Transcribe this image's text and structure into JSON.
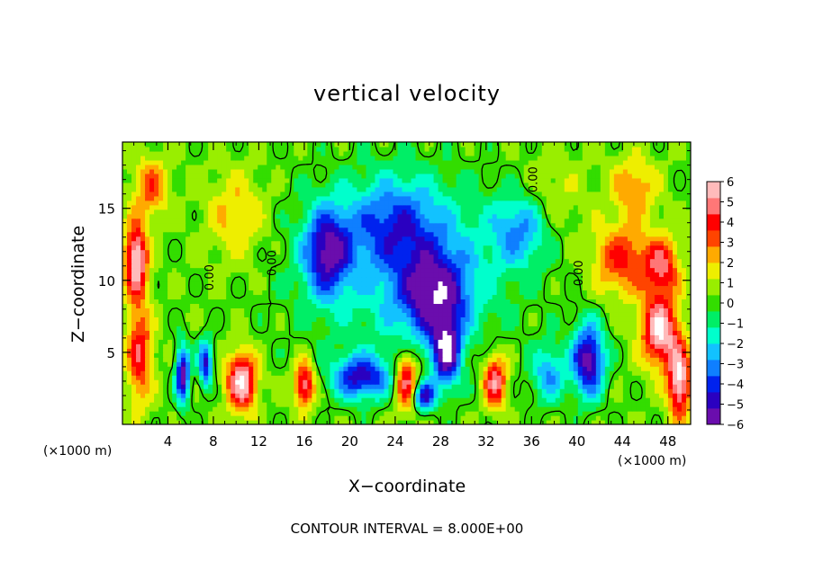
{
  "chart_data": {
    "type": "heatmap",
    "title": "vertical velocity",
    "xlabel": "X−coordinate",
    "ylabel": "Z−coordinate",
    "x_unit_label": "(×1000 m)",
    "x_unit_label_right": "(×1000 m)",
    "footer": "CONTOUR INTERVAL = 8.000E+00",
    "xlim": [
      0,
      50
    ],
    "ylim": [
      0,
      19.6
    ],
    "x_ticks": [
      4,
      8,
      12,
      16,
      20,
      24,
      28,
      32,
      36,
      40,
      44,
      48
    ],
    "x_tick_labels": [
      "4",
      "8",
      "12",
      "16",
      "20",
      "24",
      "28",
      "32",
      "36",
      "40",
      "44",
      "48"
    ],
    "y_ticks": [
      5,
      10,
      15
    ],
    "y_tick_labels": [
      "5",
      "10",
      "15"
    ],
    "contour_label": "0.00",
    "colorbar": {
      "min": -6,
      "max": 6,
      "ticks": [
        6,
        5,
        4,
        3,
        2,
        1,
        0,
        -1,
        -2,
        -3,
        -4,
        -5,
        -6
      ],
      "tick_labels": [
        "6",
        "5",
        "4",
        "3",
        "2",
        "1",
        "0",
        "−1",
        "−2",
        "−3",
        "−4",
        "−5",
        "−6"
      ],
      "colors": [
        "#6a0dad",
        "#2a00c0",
        "#0022ee",
        "#0f7fff",
        "#12c2ff",
        "#00ffcc",
        "#00ee66",
        "#33dd00",
        "#99ee00",
        "#eeee00",
        "#ffaa00",
        "#ff4400",
        "#ff0000",
        "#ff7777",
        "#ffbbbb"
      ]
    },
    "field_features": [
      {
        "x": 1.2,
        "z": 11.5,
        "value": 6,
        "sx": 1.0,
        "sz": 2.5
      },
      {
        "x": 1.5,
        "z": 5.0,
        "value": 4,
        "sx": 1.1,
        "sz": 3.5
      },
      {
        "x": 5.3,
        "z": 3.5,
        "value": -6,
        "sx": 0.6,
        "sz": 2.0
      },
      {
        "x": 7.3,
        "z": 4.3,
        "value": -5,
        "sx": 0.6,
        "sz": 1.6
      },
      {
        "x": 10.5,
        "z": 3.0,
        "value": 6,
        "sx": 1.3,
        "sz": 2.0
      },
      {
        "x": 16.0,
        "z": 2.8,
        "value": 5,
        "sx": 0.9,
        "sz": 1.6
      },
      {
        "x": 18.0,
        "z": 12.0,
        "value": -5,
        "sx": 2.0,
        "sz": 3.0
      },
      {
        "x": 21.0,
        "z": 3.3,
        "value": -5,
        "sx": 2.5,
        "sz": 1.5
      },
      {
        "x": 25.0,
        "z": 3.0,
        "value": 5,
        "sx": 1.0,
        "sz": 2.0
      },
      {
        "x": 27.5,
        "z": 9.0,
        "value": -5,
        "sx": 3.0,
        "sz": 3.0
      },
      {
        "x": 28.5,
        "z": 5.0,
        "value": -6,
        "sx": 1.2,
        "sz": 2.3
      },
      {
        "x": 26.5,
        "z": 2.0,
        "value": -5,
        "sx": 1.0,
        "sz": 1.0
      },
      {
        "x": 24.0,
        "z": 14.0,
        "value": -3,
        "sx": 4.0,
        "sz": 3.0
      },
      {
        "x": 32.8,
        "z": 3.0,
        "value": 5,
        "sx": 1.0,
        "sz": 1.8
      },
      {
        "x": 35.0,
        "z": 13.5,
        "value": -3,
        "sx": 2.5,
        "sz": 2.5
      },
      {
        "x": 37.5,
        "z": 3.5,
        "value": -3,
        "sx": 1.5,
        "sz": 2.0
      },
      {
        "x": 41.0,
        "z": 4.5,
        "value": -6,
        "sx": 1.4,
        "sz": 2.5
      },
      {
        "x": 38.0,
        "z": 16.0,
        "value": 1,
        "sx": 3.0,
        "sz": 3.0
      },
      {
        "x": 44.0,
        "z": 11.5,
        "value": 3.5,
        "sx": 2.5,
        "sz": 2.5
      },
      {
        "x": 47.3,
        "z": 6.5,
        "value": 6,
        "sx": 1.6,
        "sz": 2.4
      },
      {
        "x": 49.0,
        "z": 3.0,
        "value": 6,
        "sx": 1.0,
        "sz": 2.5
      },
      {
        "x": 47.5,
        "z": 11.0,
        "value": 4,
        "sx": 1.5,
        "sz": 2.0
      },
      {
        "x": 10.0,
        "z": 14.5,
        "value": 2,
        "sx": 2.5,
        "sz": 3.0
      },
      {
        "x": 2.5,
        "z": 16.5,
        "value": 3,
        "sx": 1.5,
        "sz": 2.0
      },
      {
        "x": 45.0,
        "z": 16.5,
        "value": 2.5,
        "sx": 2.0,
        "sz": 2.0
      }
    ]
  }
}
